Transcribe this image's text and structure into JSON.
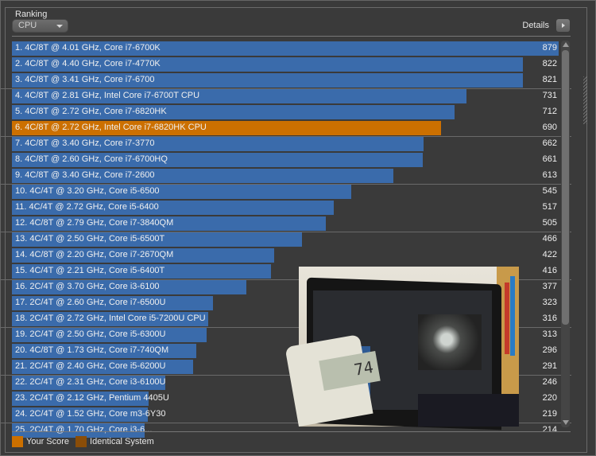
{
  "panel": {
    "title": "Ranking",
    "category_dropdown": {
      "selected": "CPU"
    },
    "details_label": "Details"
  },
  "colors": {
    "bar": "#3a6bab",
    "your_score": "#cc7000",
    "identical_system": "#8a4d08",
    "background": "#3a3a3a"
  },
  "legend": [
    {
      "label": "Your Score",
      "color": "#cc7000"
    },
    {
      "label": "Identical System",
      "color": "#8a4d08"
    }
  ],
  "chart_data": {
    "type": "bar",
    "orientation": "horizontal",
    "title": "Ranking",
    "category": "CPU",
    "max_value": 879,
    "highlighted_index": 5,
    "categories": [
      "1. 4C/8T @ 4.01 GHz, Core i7-6700K",
      "2. 4C/8T @ 4.40 GHz, Core i7-4770K",
      "3. 4C/8T @ 3.41 GHz, Core i7-6700",
      "4. 4C/8T @ 2.81 GHz, Intel Core i7-6700T CPU",
      "5. 4C/8T @ 2.72 GHz, Core i7-6820HK",
      "6. 4C/8T @ 2.72 GHz, Intel Core i7-6820HK CPU",
      "7. 4C/8T @ 3.40 GHz, Core i7-3770",
      "8. 4C/8T @ 2.60 GHz, Core i7-6700HQ",
      "9. 4C/8T @ 3.40 GHz, Core i7-2600",
      "10. 4C/4T @ 3.20 GHz, Core i5-6500",
      "11. 4C/4T @ 2.72 GHz, Core i5-6400",
      "12. 4C/8T @ 2.79 GHz, Core i7-3840QM",
      "13. 4C/4T @ 2.50 GHz, Core i5-6500T",
      "14. 4C/8T @ 2.20 GHz, Core i7-2670QM",
      "15. 4C/4T @ 2.21 GHz, Core i5-6400T",
      "16. 2C/4T @ 3.70 GHz, Core i3-6100",
      "17. 2C/4T @ 2.60 GHz, Core i7-6500U",
      "18. 2C/4T @ 2.72 GHz, Intel Core i5-7200U CPU",
      "19. 2C/4T @ 2.50 GHz, Core i5-6300U",
      "20. 4C/8T @ 1.73 GHz, Core i7-740QM",
      "21. 2C/4T @ 2.40 GHz, Core i5-6200U",
      "22. 2C/4T @ 2.31 GHz, Core i3-6100U",
      "23. 2C/4T @ 2.12 GHz, Pentium 4405U",
      "24. 2C/4T @ 1.52 GHz, Core m3-6Y30",
      "25. 2C/4T @ 1.70 GHz, Core i3-6..."
    ],
    "values": [
      879,
      822,
      821,
      731,
      712,
      690,
      662,
      661,
      613,
      545,
      517,
      505,
      466,
      422,
      416,
      377,
      323,
      316,
      313,
      296,
      291,
      246,
      220,
      219,
      214
    ],
    "xlabel": "",
    "ylabel": "",
    "legend": [
      "Your Score",
      "Identical System"
    ],
    "legend_position": "bottom-left"
  },
  "overlay_photo": {
    "description": "photo of laptop running benchmark with power meter",
    "meter_reading": "74"
  }
}
